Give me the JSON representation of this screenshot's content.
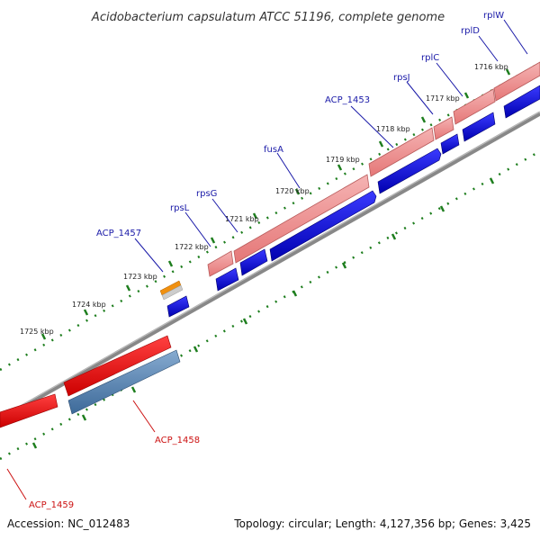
{
  "title": "Acidobacterium capsulatum ATCC 51196, complete genome",
  "footer": {
    "accession": "Accession: NC_012483",
    "topology": "Topology: circular; Length: 4,127,356 bp; Genes: 3,425"
  },
  "ticks": [
    "1716 kbp",
    "1717 kbp",
    "1718 kbp",
    "1719 kbp",
    "1720 kbp",
    "1721 kbp",
    "1722 kbp",
    "1723 kbp",
    "1724 kbp",
    "1725 kbp"
  ],
  "gene_labels": [
    "rplW",
    "rplD",
    "rplC",
    "rpsJ",
    "ACP_1453",
    "fusA",
    "rpsG",
    "rpsL",
    "ACP_1457",
    "ACP_1458",
    "ACP_1459"
  ],
  "colors": {
    "forward_cds": "#ef8a8a",
    "forward_cds_edge": "#b85a5a",
    "blue_feature": "#1010d8",
    "reverse_cds": "#ee1111",
    "reverse_blue": "#5a86b4",
    "backbone": "#777777",
    "tick": "#1e7e1e",
    "orange": "#f09010"
  }
}
